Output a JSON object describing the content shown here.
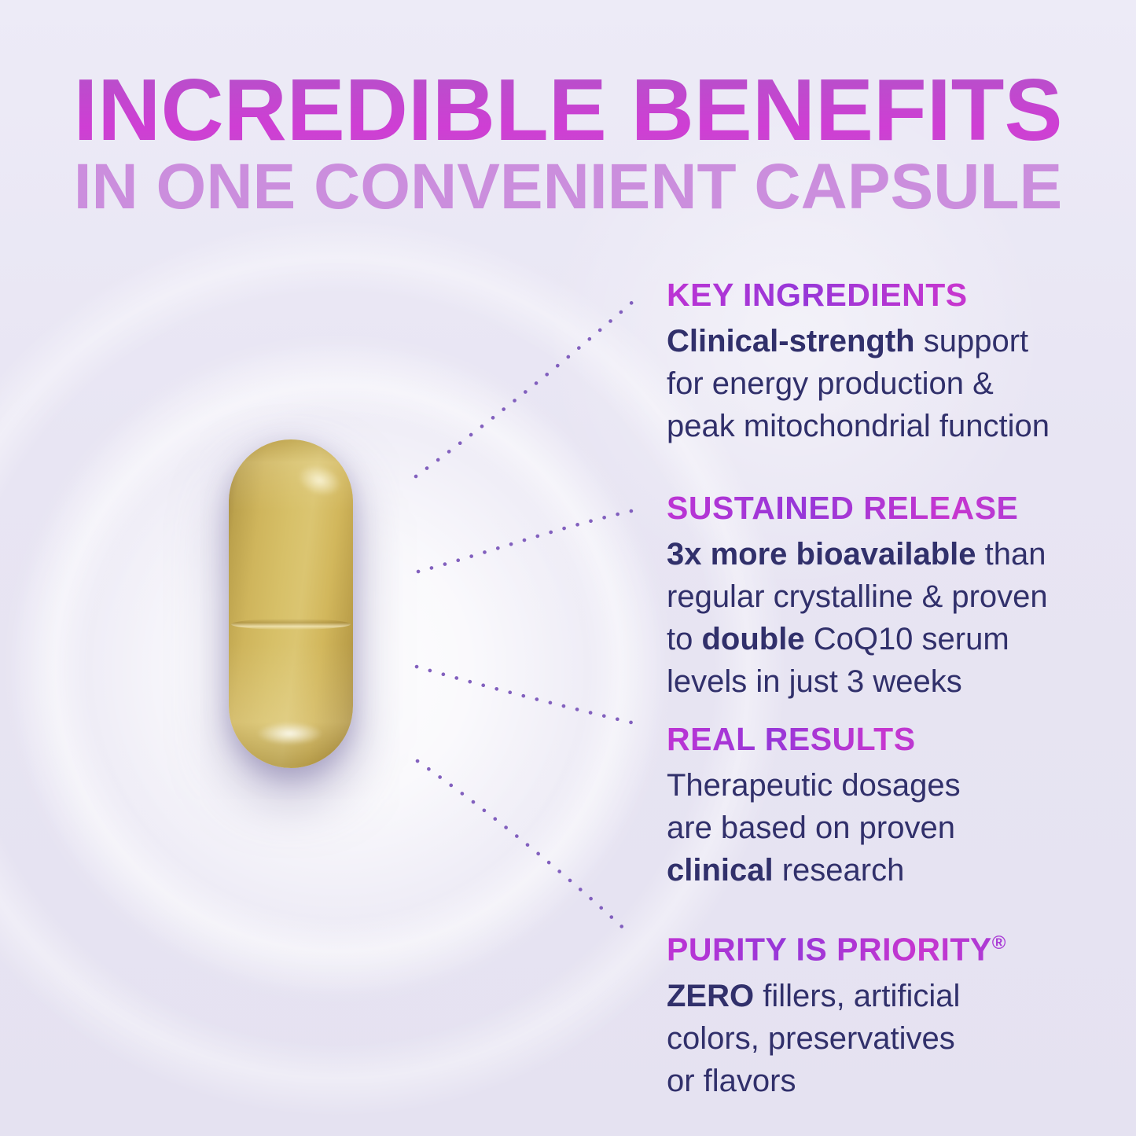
{
  "header": {
    "title": "INCREDIBLE BENEFITS",
    "subtitle": "IN ONE CONVENIENT CAPSULE"
  },
  "images": {
    "capsule": "yellow-supplement-capsule-photo"
  },
  "callouts": [
    {
      "heading": "KEY INGREDIENTS",
      "lines": [
        [
          {
            "t": "Clinical-strength",
            "b": true
          },
          {
            "t": " support"
          }
        ],
        [
          {
            "t": "for energy production &"
          }
        ],
        [
          {
            "t": "peak mitochondrial function"
          }
        ]
      ]
    },
    {
      "heading": "SUSTAINED RELEASE",
      "lines": [
        [
          {
            "t": "3x more bioavailable",
            "b": true
          },
          {
            "t": " than"
          }
        ],
        [
          {
            "t": "regular crystalline & proven"
          }
        ],
        [
          {
            "t": "to "
          },
          {
            "t": "double",
            "b": true
          },
          {
            "t": " CoQ10 serum"
          }
        ],
        [
          {
            "t": "levels in just 3 weeks"
          }
        ]
      ]
    },
    {
      "heading": "REAL RESULTS",
      "lines": [
        [
          {
            "t": "Therapeutic dosages"
          }
        ],
        [
          {
            "t": "are based on proven"
          }
        ],
        [
          {
            "t": "clinical",
            "b": true
          },
          {
            "t": " research"
          }
        ]
      ]
    },
    {
      "heading": "PURITY IS PRIORITY",
      "reg": "®",
      "lines": [
        [
          {
            "t": "ZERO",
            "b": true
          },
          {
            "t": " fillers, artificial"
          }
        ],
        [
          {
            "t": "colors, preservatives"
          }
        ],
        [
          {
            "t": "or flavors"
          }
        ]
      ]
    }
  ],
  "colors": {
    "title_magenta_top": "#b452c9",
    "title_magenta": "#cf3ed4",
    "subtitle_lilac": "#cb8edd",
    "heading_purple": "#9637d8",
    "heading_magenta": "#c736cf",
    "body_navy": "#31306b",
    "leader_dots": "#7b57bb",
    "capsule_gold": "#d4ba62",
    "background_lavender": "#e8e5f3"
  }
}
